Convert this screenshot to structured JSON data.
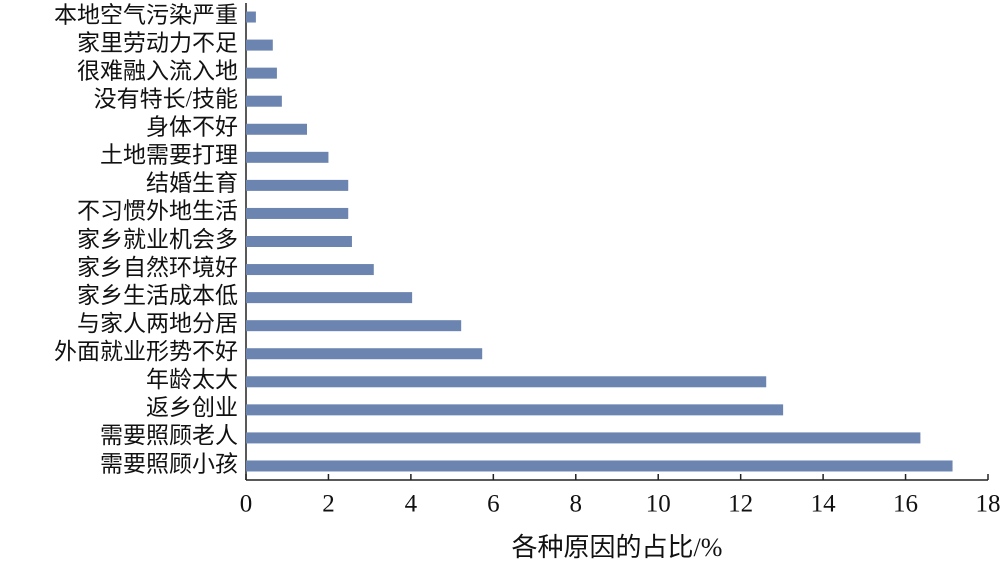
{
  "chart_data": {
    "type": "barh",
    "xlabel": "各种原因的占比/%",
    "categories": [
      "本地空气污染严重",
      "家里劳动力不足",
      "很难融入流入地",
      "没有特长/技能",
      "身体不好",
      "土地需要打理",
      "结婚生育",
      "不习惯外地生活",
      "家乡就业机会多",
      "家乡自然环境好",
      "家乡生活成本低",
      "与家人两地分居",
      "外面就业形势不好",
      "年龄太大",
      "返乡创业",
      "需要照顾老人",
      "需要照顾小孩"
    ],
    "values": [
      0.24,
      0.65,
      0.75,
      0.87,
      1.48,
      2.0,
      2.48,
      2.48,
      2.57,
      3.1,
      4.03,
      5.22,
      5.73,
      12.62,
      13.03,
      16.36,
      17.14
    ],
    "color": "#6b84b0",
    "xlim": [
      0,
      18
    ],
    "xticks": [
      0,
      2,
      4,
      6,
      8,
      10,
      12,
      14,
      16,
      18
    ]
  }
}
